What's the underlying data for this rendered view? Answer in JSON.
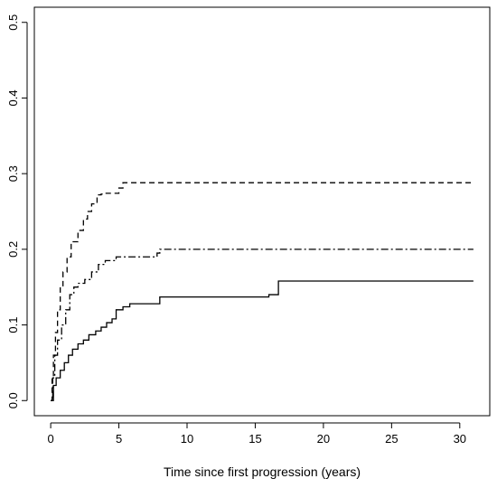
{
  "chart_data": {
    "type": "line",
    "title": "",
    "xlabel": "Time since first progression (years)",
    "ylabel": "",
    "xlim": [
      -1.2,
      32.2
    ],
    "ylim": [
      -0.02,
      0.52
    ],
    "xticks": [
      0,
      5,
      10,
      15,
      20,
      25,
      30
    ],
    "yticks": [
      0.0,
      0.1,
      0.2,
      0.3,
      0.4,
      0.5
    ],
    "xtick_labels": [
      "0",
      "5",
      "10",
      "15",
      "20",
      "25",
      "30"
    ],
    "ytick_labels": [
      "0.0",
      "0.1",
      "0.2",
      "0.3",
      "0.4",
      "0.5"
    ],
    "grid": false,
    "legend": false,
    "step": true,
    "series": [
      {
        "line_style": "dashed",
        "color": "#000000",
        "x": [
          0,
          0.1,
          0.2,
          0.35,
          0.5,
          0.7,
          0.9,
          1.2,
          1.5,
          2.0,
          2.4,
          2.7,
          3.0,
          3.4,
          3.7,
          4.0,
          5.0,
          5.3,
          31
        ],
        "y": [
          0,
          0.03,
          0.06,
          0.09,
          0.12,
          0.15,
          0.17,
          0.19,
          0.21,
          0.225,
          0.24,
          0.25,
          0.26,
          0.272,
          0.273,
          0.274,
          0.281,
          0.288,
          0.288
        ]
      },
      {
        "line_style": "dotdash",
        "color": "#000000",
        "x": [
          0,
          0.15,
          0.3,
          0.5,
          0.8,
          1.1,
          1.4,
          1.7,
          2.0,
          2.5,
          3.0,
          3.5,
          4.0,
          4.8,
          7.8,
          8.0,
          31
        ],
        "y": [
          0,
          0.03,
          0.06,
          0.08,
          0.1,
          0.12,
          0.14,
          0.15,
          0.155,
          0.16,
          0.17,
          0.18,
          0.185,
          0.19,
          0.195,
          0.2,
          0.2
        ]
      },
      {
        "line_style": "solid",
        "color": "#000000",
        "x": [
          0,
          0.2,
          0.4,
          0.7,
          1.0,
          1.3,
          1.6,
          2.0,
          2.4,
          2.8,
          3.3,
          3.7,
          4.1,
          4.5,
          4.8,
          5.3,
          5.8,
          8.0,
          16.0,
          16.7,
          31
        ],
        "y": [
          0,
          0.02,
          0.03,
          0.04,
          0.05,
          0.06,
          0.068,
          0.075,
          0.08,
          0.087,
          0.092,
          0.097,
          0.103,
          0.108,
          0.12,
          0.124,
          0.128,
          0.137,
          0.14,
          0.158,
          0.158
        ]
      }
    ]
  }
}
